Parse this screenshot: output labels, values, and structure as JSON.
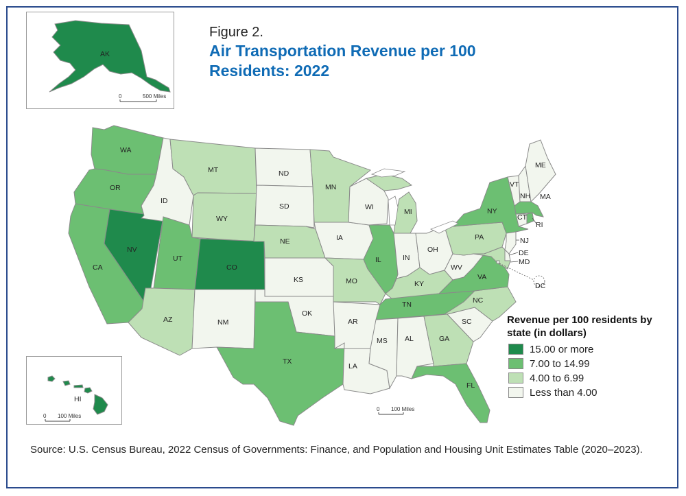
{
  "figure_label": "Figure 2.",
  "title": "Air Transportation Revenue per 100 Residents: 2022",
  "source": "Source: U.S. Census Bureau, 2022 Census of Governments: Finance, and Population and Housing Unit Estimates Table (2020–2023).",
  "legend": {
    "title": "Revenue per 100 residents by state (in dollars)",
    "items": [
      {
        "label": "15.00 or more",
        "color": "#1f8a4c"
      },
      {
        "label": "7.00 to 14.99",
        "color": "#6cbf72"
      },
      {
        "label": "4.00 to 6.99",
        "color": "#bee0b5"
      },
      {
        "label": "Less than 4.00",
        "color": "#f2f6ee"
      }
    ]
  },
  "scale_bars": {
    "alaska": {
      "zero": "0",
      "label": "500 Miles"
    },
    "hawaii": {
      "zero": "0",
      "label": "100 Miles"
    },
    "main": {
      "zero": "0",
      "label": "100 Miles"
    }
  },
  "states": [
    {
      "abbr": "AK",
      "class": "15.00 or more"
    },
    {
      "abbr": "HI",
      "class": "15.00 or more"
    },
    {
      "abbr": "WA",
      "class": "7.00 to 14.99"
    },
    {
      "abbr": "OR",
      "class": "7.00 to 14.99"
    },
    {
      "abbr": "CA",
      "class": "7.00 to 14.99"
    },
    {
      "abbr": "NV",
      "class": "15.00 or more"
    },
    {
      "abbr": "ID",
      "class": "Less than 4.00"
    },
    {
      "abbr": "MT",
      "class": "4.00 to 6.99"
    },
    {
      "abbr": "WY",
      "class": "4.00 to 6.99"
    },
    {
      "abbr": "UT",
      "class": "7.00 to 14.99"
    },
    {
      "abbr": "CO",
      "class": "15.00 or more"
    },
    {
      "abbr": "AZ",
      "class": "4.00 to 6.99"
    },
    {
      "abbr": "NM",
      "class": "Less than 4.00"
    },
    {
      "abbr": "ND",
      "class": "Less than 4.00"
    },
    {
      "abbr": "SD",
      "class": "Less than 4.00"
    },
    {
      "abbr": "NE",
      "class": "4.00 to 6.99"
    },
    {
      "abbr": "KS",
      "class": "Less than 4.00"
    },
    {
      "abbr": "OK",
      "class": "Less than 4.00"
    },
    {
      "abbr": "TX",
      "class": "7.00 to 14.99"
    },
    {
      "abbr": "MN",
      "class": "4.00 to 6.99"
    },
    {
      "abbr": "IA",
      "class": "Less than 4.00"
    },
    {
      "abbr": "MO",
      "class": "4.00 to 6.99"
    },
    {
      "abbr": "AR",
      "class": "Less than 4.00"
    },
    {
      "abbr": "LA",
      "class": "Less than 4.00"
    },
    {
      "abbr": "WI",
      "class": "Less than 4.00"
    },
    {
      "abbr": "IL",
      "class": "7.00 to 14.99"
    },
    {
      "abbr": "MI",
      "class": "4.00 to 6.99"
    },
    {
      "abbr": "IN",
      "class": "Less than 4.00"
    },
    {
      "abbr": "OH",
      "class": "Less than 4.00"
    },
    {
      "abbr": "KY",
      "class": "4.00 to 6.99"
    },
    {
      "abbr": "TN",
      "class": "7.00 to 14.99"
    },
    {
      "abbr": "MS",
      "class": "Less than 4.00"
    },
    {
      "abbr": "AL",
      "class": "Less than 4.00"
    },
    {
      "abbr": "GA",
      "class": "4.00 to 6.99"
    },
    {
      "abbr": "FL",
      "class": "7.00 to 14.99"
    },
    {
      "abbr": "SC",
      "class": "Less than 4.00"
    },
    {
      "abbr": "NC",
      "class": "4.00 to 6.99"
    },
    {
      "abbr": "VA",
      "class": "7.00 to 14.99"
    },
    {
      "abbr": "WV",
      "class": "Less than 4.00"
    },
    {
      "abbr": "PA",
      "class": "4.00 to 6.99"
    },
    {
      "abbr": "NY",
      "class": "7.00 to 14.99"
    },
    {
      "abbr": "NJ",
      "class": "Less than 4.00"
    },
    {
      "abbr": "DE",
      "class": "Less than 4.00"
    },
    {
      "abbr": "MD",
      "class": "4.00 to 6.99"
    },
    {
      "abbr": "DC",
      "class": "Less than 4.00"
    },
    {
      "abbr": "VT",
      "class": "Less than 4.00"
    },
    {
      "abbr": "NH",
      "class": "Less than 4.00"
    },
    {
      "abbr": "ME",
      "class": "Less than 4.00"
    },
    {
      "abbr": "MA",
      "class": "7.00 to 14.99"
    },
    {
      "abbr": "CT",
      "class": "Less than 4.00"
    },
    {
      "abbr": "RI",
      "class": "7.00 to 14.99"
    }
  ]
}
